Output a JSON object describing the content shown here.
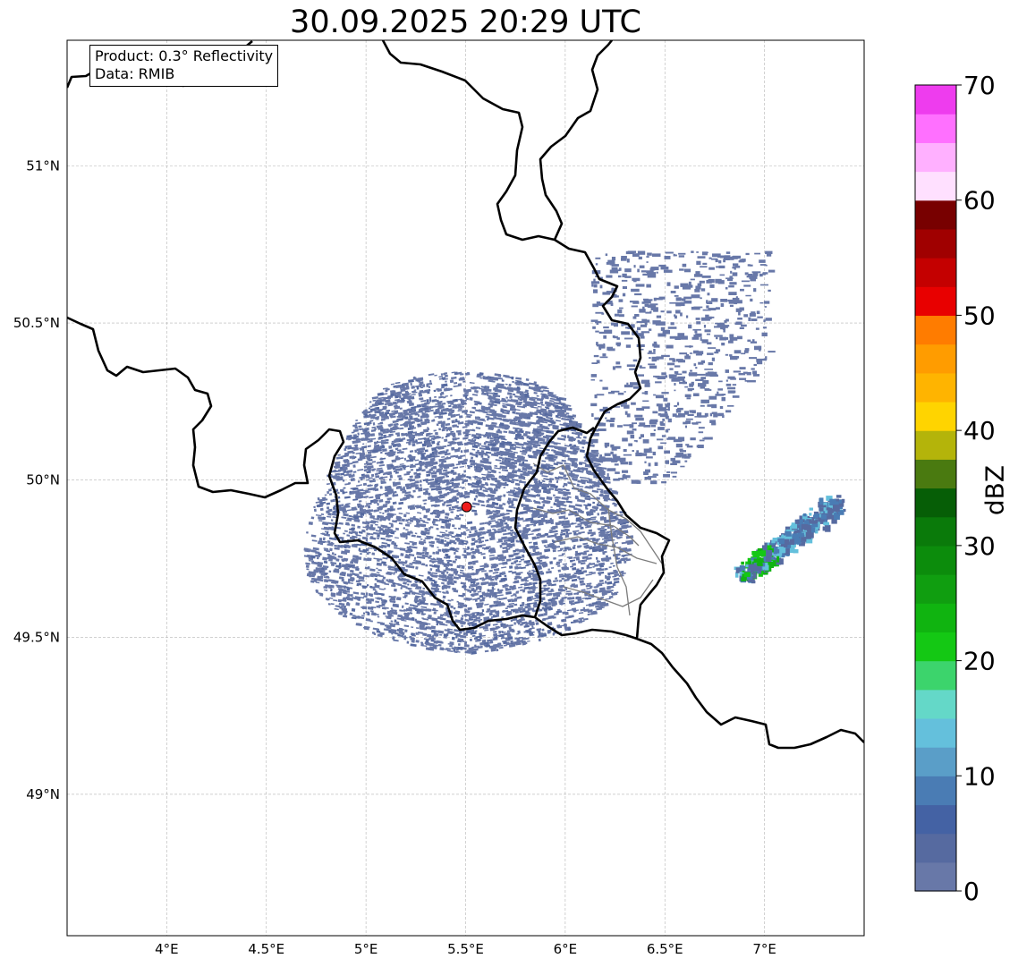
{
  "title": "30.09.2025 20:29 UTC",
  "info": {
    "product": "Product: 0.3° Reflectivity",
    "source": "Data: RMIB"
  },
  "map": {
    "lon_range": [
      3.5,
      7.5
    ],
    "lat_range": [
      48.55,
      51.4
    ],
    "lon_ticks": [
      {
        "value": 4.0,
        "label": "4°E"
      },
      {
        "value": 4.5,
        "label": "4.5°E"
      },
      {
        "value": 5.0,
        "label": "5°E"
      },
      {
        "value": 5.5,
        "label": "5.5°E"
      },
      {
        "value": 6.0,
        "label": "6°E"
      },
      {
        "value": 6.5,
        "label": "6.5°E"
      },
      {
        "value": 7.0,
        "label": "7°E"
      }
    ],
    "lat_ticks": [
      {
        "value": 49.0,
        "label": "49°N"
      },
      {
        "value": 49.5,
        "label": "49.5°N"
      },
      {
        "value": 50.0,
        "label": "50°N"
      },
      {
        "value": 50.5,
        "label": "50.5°N"
      },
      {
        "value": 51.0,
        "label": "51°N"
      }
    ],
    "gridlines": true,
    "radar_site": {
      "lon": 5.505,
      "lat": 49.915,
      "color": "#ee1c1c"
    },
    "echo_region": {
      "center_lon": 5.5,
      "center_lat": 49.9,
      "extent_lon": 1.55,
      "extent_lat": 0.97
    },
    "storm_cell": {
      "lon_start": 6.88,
      "lat_start": 49.7,
      "lon_end": 7.35,
      "lat_end": 49.93,
      "max_dbz": 24
    }
  },
  "colorbar": {
    "label": "dBZ",
    "min": 0,
    "max": 70,
    "step": 2.5,
    "ticks": [
      "0",
      "10",
      "20",
      "30",
      "40",
      "50",
      "60",
      "70"
    ],
    "colors": [
      "#6878a8",
      "#566aa0",
      "#4462a4",
      "#4a7cb4",
      "#5a9ec8",
      "#64c0dc",
      "#64d8c8",
      "#3cd46c",
      "#14c814",
      "#10b410",
      "#109e10",
      "#0c8c0c",
      "#0a7a0a",
      "#065e06",
      "#4a7a10",
      "#b4b40a",
      "#ffd400",
      "#ffb400",
      "#ff9c00",
      "#ff7c00",
      "#e80000",
      "#c40000",
      "#a00000",
      "#780000",
      "#ffe0ff",
      "#ffb0ff",
      "#ff70ff",
      "#ee3cee"
    ]
  }
}
